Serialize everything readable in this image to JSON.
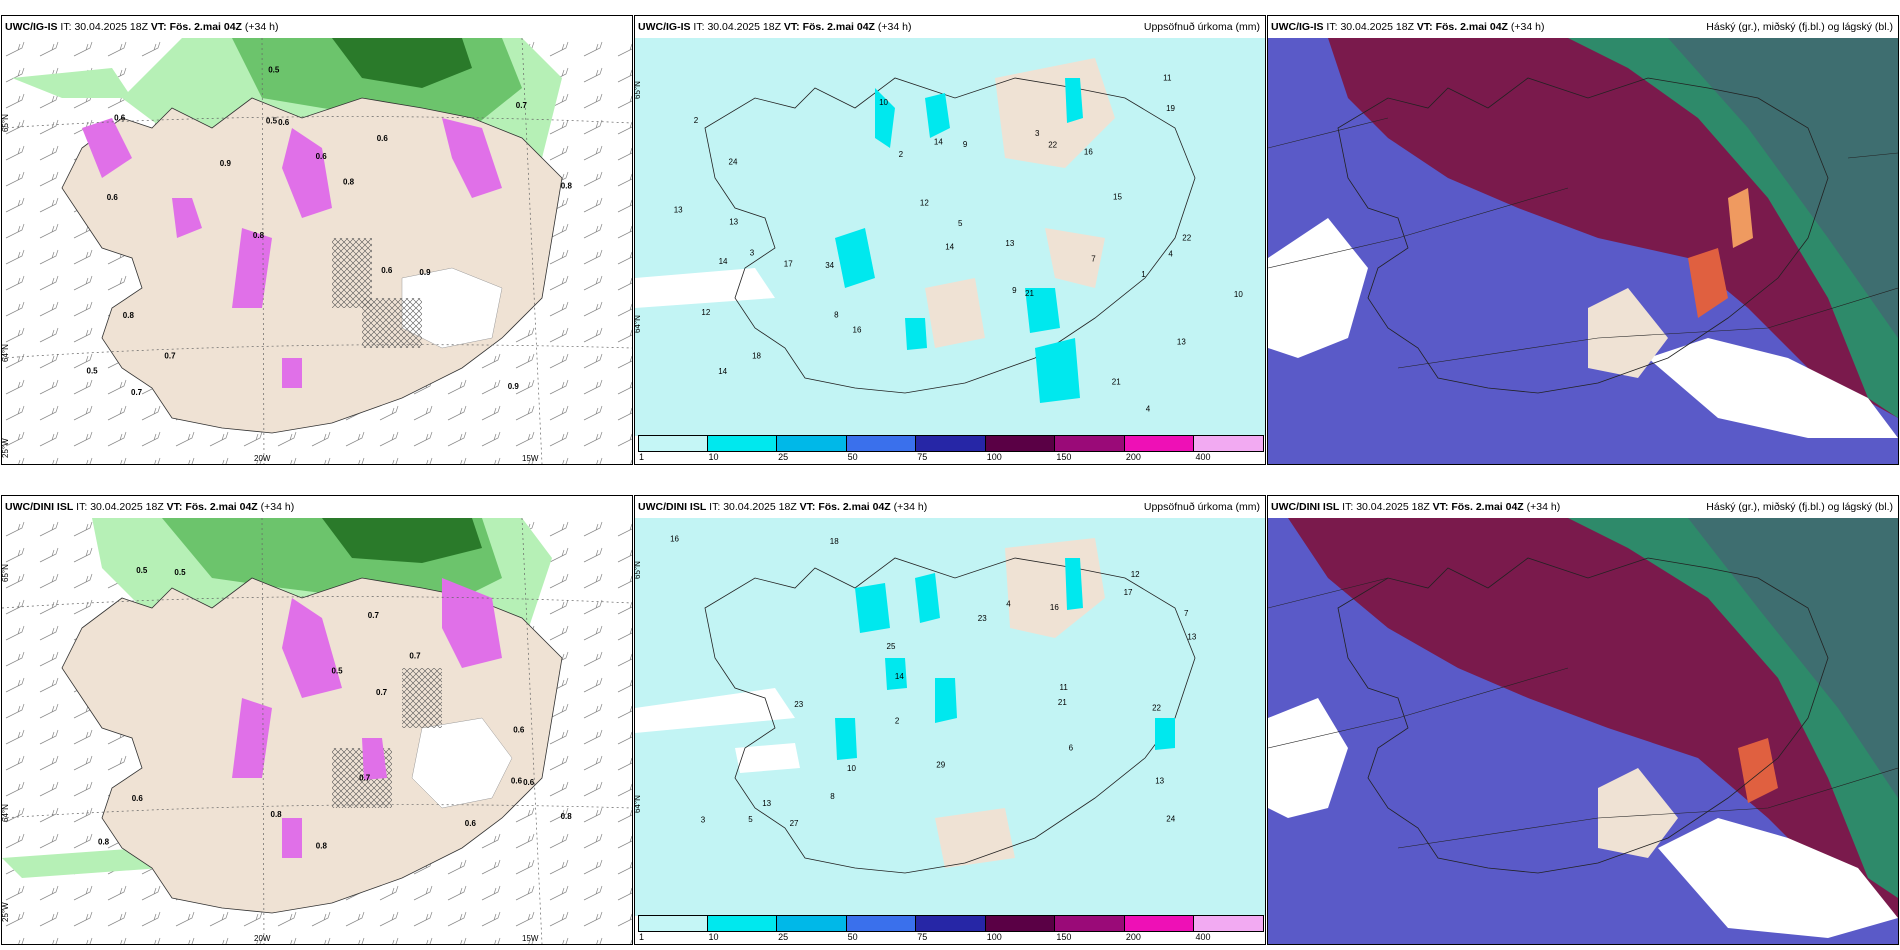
{
  "rows": [
    {
      "model": "UWC/IG-IS",
      "it_label": "IT:",
      "it_value": "30.04.2025 18Z",
      "vt_label": "VT:",
      "vt_value": "Fös. 2.mai 04Z",
      "lead": "(+34 h)"
    },
    {
      "model": "UWC/DINI ISL",
      "it_label": "IT:",
      "it_value": "30.04.2025 18Z",
      "vt_label": "VT:",
      "vt_value": "Fös. 2.mai 04Z",
      "lead": "(+34 h)"
    }
  ],
  "panel_titles": {
    "precip": "Uppsöfnuð úrkoma (mm)",
    "cloud": "Háský (gr.), miðský (fj.bl.) og lágský (bl.)"
  },
  "precip_colorbar": {
    "ticks": [
      "1",
      "10",
      "25",
      "50",
      "75",
      "100",
      "150",
      "200",
      "400"
    ],
    "colors": [
      "#c5f6f6",
      "#00e8ee",
      "#00b8e8",
      "#3a70ec",
      "#2626a6",
      "#5a0045",
      "#9a0a78",
      "#ee10b6",
      "#f2aaf2"
    ]
  },
  "axis_labels": {
    "lat_65": "65°N",
    "lat_64": "64°N",
    "lon_25": "25°W",
    "lon_20": "20W",
    "lon_15": "15W"
  },
  "colors": {
    "land": "#efe2d4",
    "sea_precip": "#c2f4f4",
    "cloud_high": "#7a1a4c",
    "cloud_mid": "#5a5ac8",
    "cloud_low": "#2e8a6a",
    "snow": "#e070e8",
    "green_dark": "#2a7a2a",
    "green_light": "#b6f0b6"
  },
  "top_left_labels": [
    "0.9",
    "0.6",
    "0.7",
    "0.8",
    "0.6",
    "0.7",
    "0.5",
    "0.6",
    "0.8",
    "0.9",
    "0.5",
    "0.7",
    "0.6",
    "0.8",
    "0.9",
    "0.6",
    "0.5",
    "0.8",
    "0.6"
  ],
  "top_mid_labels": [
    "4",
    "3",
    "9",
    "2",
    "13",
    "24",
    "18",
    "34",
    "16",
    "14",
    "22",
    "21",
    "16",
    "10",
    "13",
    "12",
    "7",
    "5",
    "13",
    "14",
    "11",
    "9",
    "15",
    "10",
    "22",
    "13",
    "17",
    "14",
    "12",
    "19",
    "21",
    "14",
    "8",
    "3",
    "2",
    "1",
    "4"
  ],
  "bottom_left_labels": [
    "0.6",
    "0.7",
    "0.6",
    "0.8",
    "0.7",
    "0.6",
    "0.5",
    "0.7",
    "0.6",
    "0.8",
    "0.5",
    "0.7",
    "0.6",
    "0.8",
    "0.5",
    "0.8"
  ],
  "bottom_mid_labels": [
    "3",
    "6",
    "4",
    "21",
    "24",
    "17",
    "18",
    "29",
    "23",
    "27",
    "22",
    "13",
    "12",
    "10",
    "16",
    "25",
    "23",
    "14",
    "8",
    "13",
    "16",
    "13",
    "11",
    "5",
    "2",
    "7"
  ]
}
